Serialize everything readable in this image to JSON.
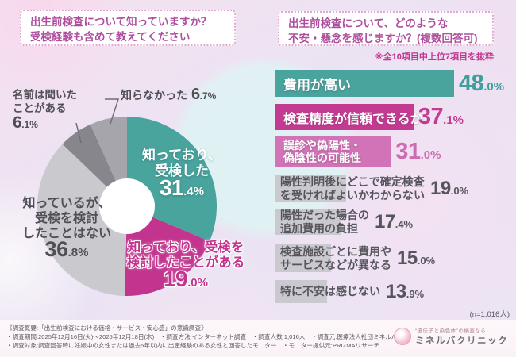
{
  "colors": {
    "teal": "#4AA49E",
    "magenta": "#C33B90",
    "light_pink": "#D173B6",
    "light_pink_value": "#CE6CB2",
    "gray_bar": "#C9C9CF",
    "dark_text": "#4F4F55",
    "title_pink": "#AE4F9E",
    "note_pink": "#C0368E",
    "pie_gray_light": "#C9C9CE",
    "pie_gray_dark": "#86868C",
    "pie_gray_mid": "#A5A5AB"
  },
  "header": {
    "left_title_lines": [
      "出生前検査について知っていますか？",
      "受検経験も含めて教えてください"
    ],
    "right_title_lines": [
      "出生前検査について、どのような",
      "不安・懸念を感じますか？(複数回答可)"
    ],
    "right_note": "※全10項目中上位7項目を抜粋"
  },
  "chart_data": [
    {
      "type": "pie",
      "subtype": "donut",
      "title": "出生前検査について知っていますか？受検経験も含めて教えてください",
      "categories": [
        "知っており、受検した",
        "知っており、受検を検討したことがある",
        "知っているが、受検を検討したことはない",
        "名前は聞いたことがある",
        "知らなかった"
      ],
      "values": [
        31.4,
        19.0,
        36.8,
        6.1,
        6.7
      ],
      "colors": [
        "#4AA49E",
        "#C2348E",
        "#C9C9CE",
        "#86868C",
        "#A5A5AB"
      ],
      "label_lines": [
        [
          "知っており、",
          "受検した"
        ],
        [
          "知っており、受検を",
          "検討したことがある"
        ],
        [
          "知っているが、",
          "受検を検討",
          "したことはない"
        ],
        [
          "名前は聞いた",
          "ことがある"
        ],
        [
          "知らなかった"
        ]
      ],
      "start_angle_deg": 0,
      "direction": "clockwise",
      "donut_hole_color": "#FFFFFF"
    },
    {
      "type": "bar",
      "orientation": "horizontal",
      "title": "出生前検査について、どのような不安・懸念を感じますか？(複数回答可)",
      "note": "※全10項目中上位7項目を抜粋",
      "n_label": "(n=1,016人)",
      "categories": [
        "費用が高い",
        "検査精度が信頼できるか",
        "誤診や偽陽性・偽陰性の可能性",
        "陽性判明後にどこで確定検査を受ければよいかわからない",
        "陽性だった場合の追加費用の負担",
        "検査施設ごとに費用やサービスなどが異なる",
        "特に不安は感じない"
      ],
      "label_lines": [
        [
          "費用が高い"
        ],
        [
          "検査精度が信頼できるか"
        ],
        [
          "誤診や偽陽性・",
          "偽陰性の可能性"
        ],
        [
          "陽性判明後にどこで確定検査",
          "を受ければよいかわからない"
        ],
        [
          "陽性だった場合の",
          "追加費用の負担"
        ],
        [
          "検査施設ごとに費用や",
          "サービスなどが異なる"
        ],
        [
          "特に不安は感じない"
        ]
      ],
      "values": [
        48.0,
        37.1,
        31.0,
        19.0,
        17.4,
        15.0,
        13.9
      ],
      "bar_colors": [
        "#4AA49E",
        "#C33B90",
        "#D173B6",
        "#C9C9CF",
        "#C9C9CF",
        "#C9C9CF",
        "#C9C9CF"
      ],
      "value_colors": [
        "#3FA09B",
        "#C33B90",
        "#CE6CB2",
        "#55555B",
        "#55555B",
        "#55555B",
        "#55555B"
      ],
      "xlim": [
        0,
        48.0
      ]
    }
  ],
  "footer": {
    "line1": "《調査概要:「出生前検査における価格・サービス・安心感」の意識調査》",
    "line2": "・調査期間:2025年12月16日(火)〜2025年12月18日(木)　・調査方法:インターネット調査　・調査人数:1,016人　・調査元:医療法人社団ミネルバ",
    "line3": "・調査対象:調査回答時に妊娠中の女性または過去5年以内に出産経験のある女性と回答したモニター　・モニター提供元:PRIZMAリサーチ",
    "logo_tagline": "“遺伝子と染色体”の検査なら",
    "logo_name": "ミネルバクリニック"
  }
}
